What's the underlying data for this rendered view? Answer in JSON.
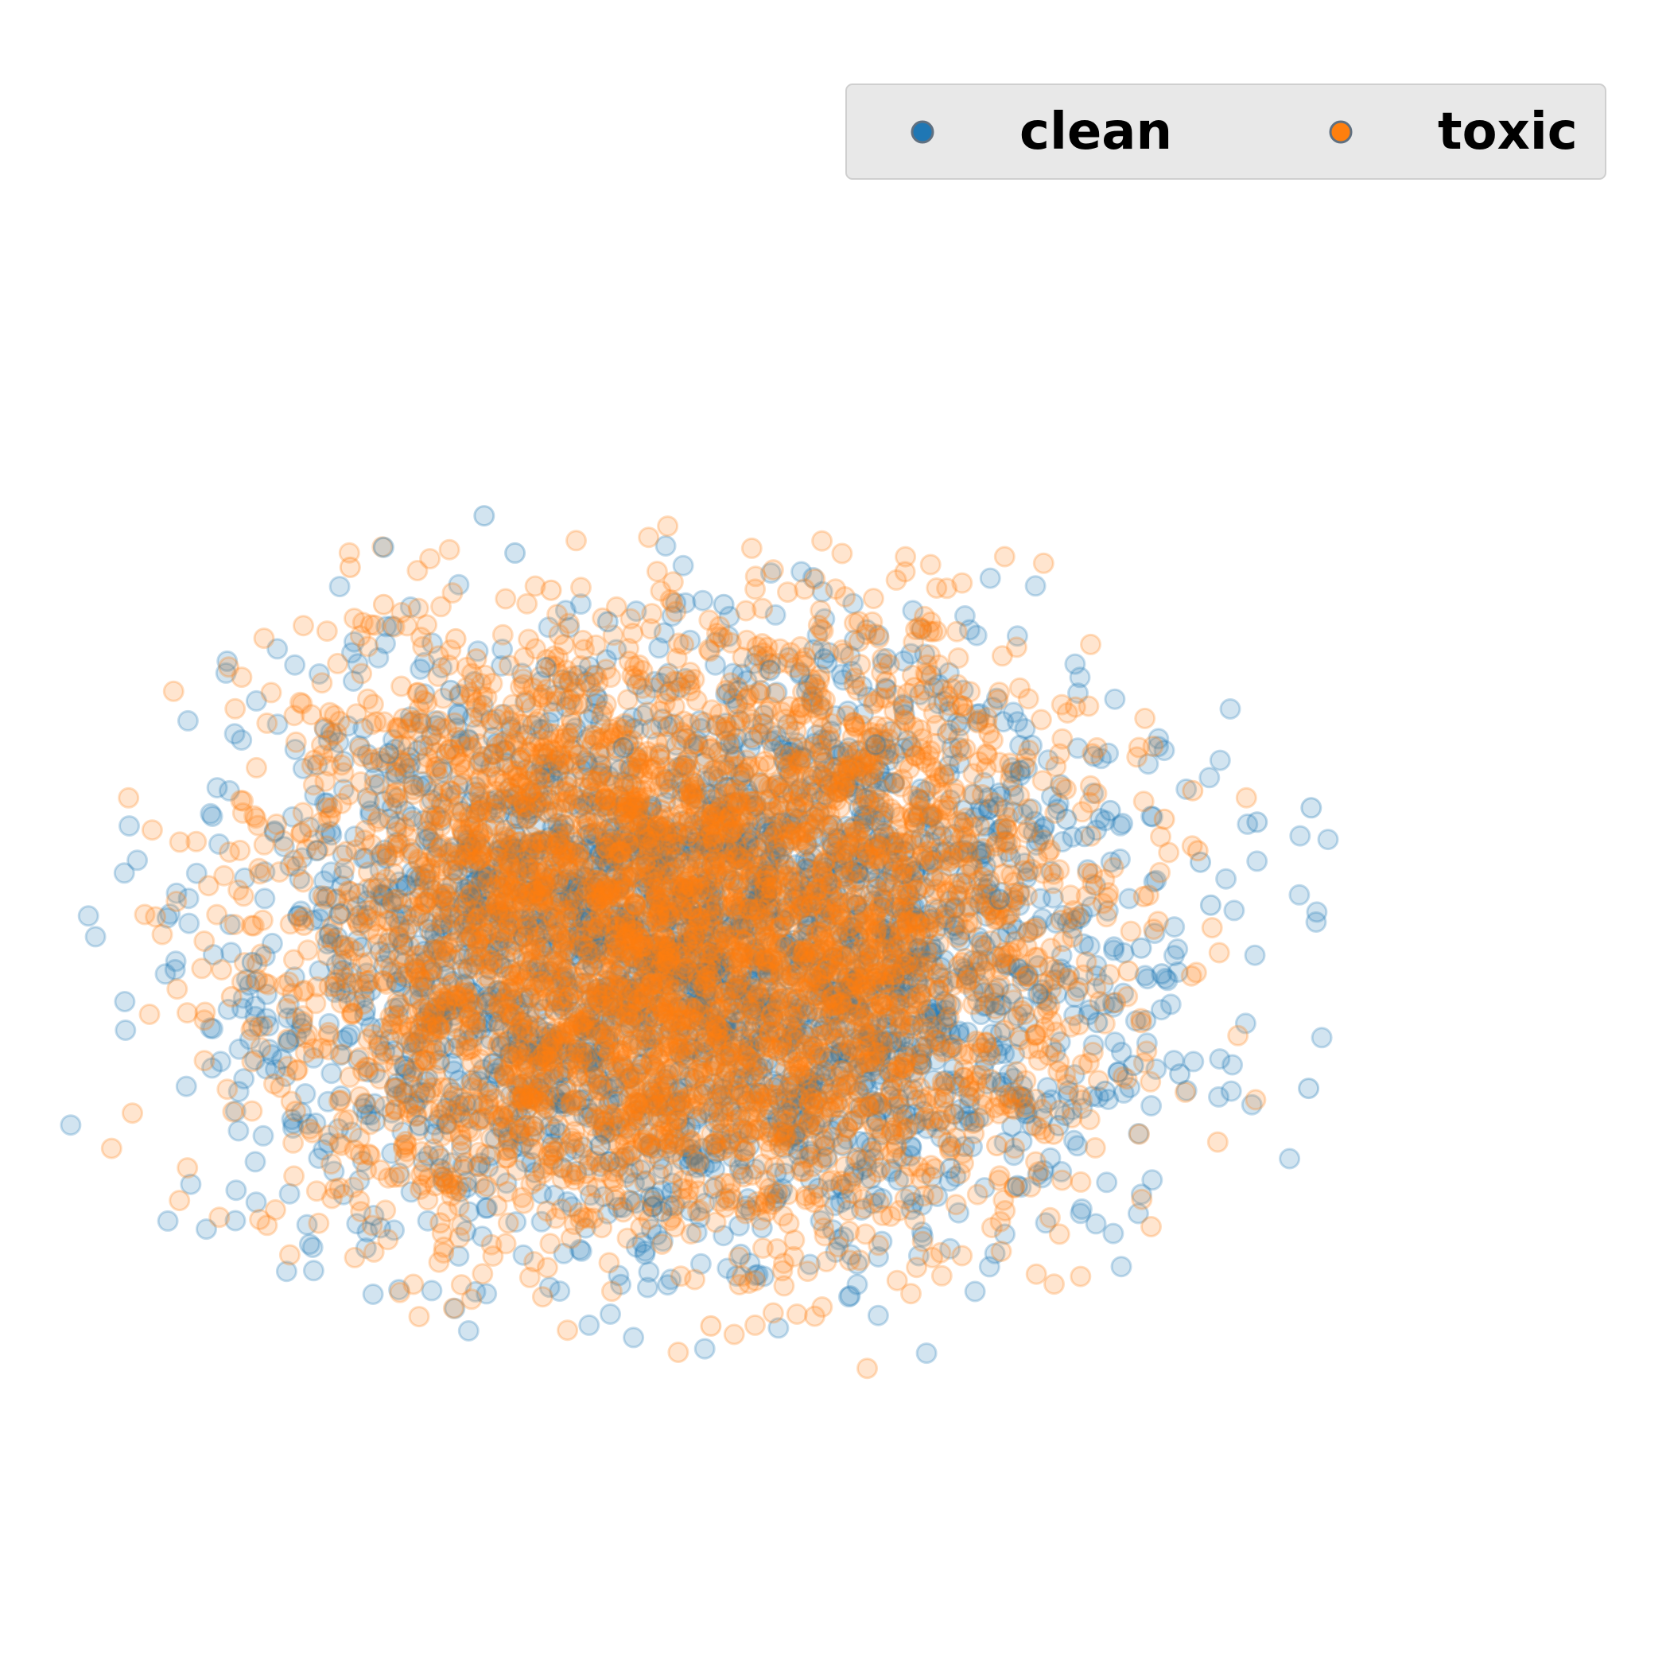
{
  "chart_data": {
    "type": "scatter",
    "title": "",
    "xlabel": "",
    "ylabel": "",
    "axes_visible": false,
    "grid": false,
    "legend": {
      "position": "top-right",
      "columns": 2
    },
    "series": [
      {
        "name": "clean",
        "color": "#1f77b4",
        "alpha": 0.2,
        "points": [
          [
            -1.52,
            2.98
          ],
          [
            -1.28,
            2.72
          ],
          [
            -2.3,
            2.76
          ],
          [
            -0.56,
            2.24
          ],
          [
            0.34,
            2.36
          ],
          [
            0.7,
            1.9
          ],
          [
            1.12,
            1.98
          ],
          [
            -1.04,
            1.92
          ],
          [
            -1.78,
            1.76
          ],
          [
            -2.26,
            1.32
          ],
          [
            2.64,
            1.2
          ],
          [
            3.0,
            0.86
          ],
          [
            3.14,
            0.74
          ],
          [
            3.34,
            0.92
          ],
          [
            4.9,
            0.94
          ],
          [
            4.48,
            0.84
          ],
          [
            4.12,
            0.26
          ],
          [
            3.74,
            -0.22
          ],
          [
            3.58,
            -0.04
          ],
          [
            3.24,
            -0.56
          ],
          [
            3.52,
            -0.86
          ],
          [
            3.88,
            -0.92
          ],
          [
            2.94,
            -1.28
          ],
          [
            2.62,
            -1.7
          ],
          [
            -0.2,
            -1.78
          ],
          [
            -0.14,
            -1.88
          ],
          [
            -0.62,
            -1.42
          ],
          [
            -2.02,
            -1.28
          ],
          [
            -3.04,
            -0.7
          ],
          [
            -3.32,
            -0.14
          ],
          [
            -2.82,
            0.64
          ],
          [
            -2.64,
            0.2
          ],
          [
            4.88,
            -1.02
          ],
          [
            4.04,
            0.56
          ],
          [
            2.48,
            0.3
          ],
          [
            2.78,
            -0.36
          ],
          [
            3.3,
            -1.04
          ],
          [
            2.1,
            -1.58
          ],
          [
            1.52,
            1.38
          ],
          [
            -0.44,
            1.36
          ]
        ],
        "dense_cloud": {
          "center": [
            0.1,
            -0.04
          ],
          "x_range": [
            -3.4,
            4.9
          ],
          "y_range": [
            -1.9,
            3.0
          ]
        }
      },
      {
        "name": "toxic",
        "color": "#ff7f0e",
        "alpha": 0.2,
        "points": [
          [
            -1.0,
            2.46
          ],
          [
            -2.56,
            2.62
          ],
          [
            -2.3,
            2.36
          ],
          [
            -1.74,
            2.12
          ],
          [
            -1.58,
            1.98
          ],
          [
            -2.76,
            1.5
          ],
          [
            -0.9,
            2.08
          ],
          [
            1.4,
            1.94
          ],
          [
            1.6,
            1.82
          ],
          [
            2.16,
            1.66
          ],
          [
            2.4,
            1.46
          ],
          [
            3.98,
            1.06
          ],
          [
            3.76,
            0.86
          ],
          [
            4.02,
            0.64
          ],
          [
            3.6,
            0.32
          ],
          [
            3.48,
            -0.2
          ],
          [
            3.38,
            -0.42
          ],
          [
            3.58,
            -0.56
          ],
          [
            -3.48,
            -0.38
          ],
          [
            -3.28,
            -0.26
          ],
          [
            -2.46,
            -0.9
          ],
          [
            -2.48,
            -1.48
          ],
          [
            -1.9,
            -1.7
          ],
          [
            -0.5,
            -1.8
          ],
          [
            -0.18,
            -1.44
          ],
          [
            0.44,
            -1.24
          ],
          [
            0.96,
            -1.6
          ],
          [
            2.46,
            -1.42
          ],
          [
            2.9,
            -1.34
          ],
          [
            -1.86,
            -1.96
          ],
          [
            0.24,
            -2.68
          ],
          [
            0.5,
            -1.46
          ],
          [
            0.84,
            -1.18
          ],
          [
            -1.38,
            -1.22
          ],
          [
            -2.7,
            0.94
          ],
          [
            1.82,
            1.78
          ],
          [
            3.2,
            0.48
          ],
          [
            -2.92,
            0.12
          ],
          [
            2.08,
            1.72
          ],
          [
            0.02,
            -1.72
          ]
        ],
        "dense_cloud": {
          "center": [
            0.02,
            0.06
          ],
          "x_range": [
            -3.5,
            4.0
          ],
          "y_range": [
            -2.7,
            2.6
          ]
        }
      }
    ]
  }
}
